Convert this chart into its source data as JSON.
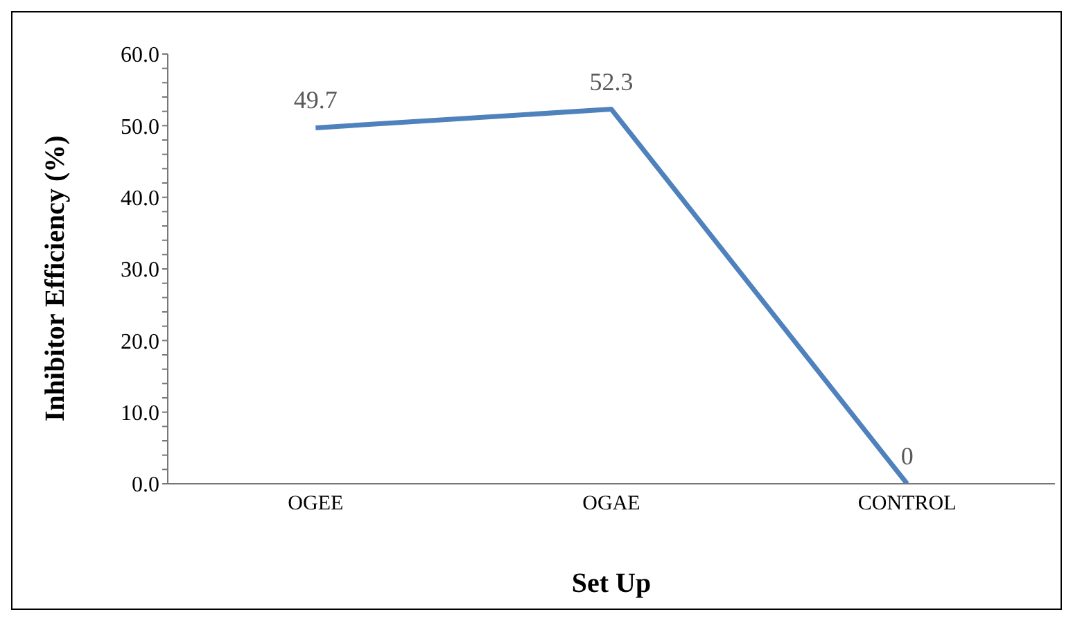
{
  "chart_data": {
    "type": "line",
    "xlabel": "Set Up",
    "ylabel": "Inhibitor Efficiency (%)",
    "categories": [
      "OGEE",
      "OGAE",
      "CONTROL"
    ],
    "series": [
      {
        "color": "#4f81bd",
        "values": [
          49.7,
          52.3,
          0
        ]
      }
    ],
    "ylim": [
      0,
      60
    ],
    "yticks": [
      {
        "value": 0,
        "label": "0.0"
      },
      {
        "value": 2,
        "label": null
      },
      {
        "value": 4,
        "label": null
      },
      {
        "value": 6,
        "label": null
      },
      {
        "value": 8,
        "label": null
      },
      {
        "value": 10,
        "label": "10.0"
      },
      {
        "value": 12,
        "label": null
      },
      {
        "value": 14,
        "label": null
      },
      {
        "value": 16,
        "label": null
      },
      {
        "value": 18,
        "label": null
      },
      {
        "value": 20,
        "label": "20.0"
      },
      {
        "value": 22,
        "label": null
      },
      {
        "value": 24,
        "label": null
      },
      {
        "value": 26,
        "label": null
      },
      {
        "value": 28,
        "label": null
      },
      {
        "value": 30,
        "label": "30.0"
      },
      {
        "value": 32,
        "label": null
      },
      {
        "value": 34,
        "label": null
      },
      {
        "value": 36,
        "label": null
      },
      {
        "value": 38,
        "label": null
      },
      {
        "value": 40,
        "label": "40.0"
      },
      {
        "value": 42,
        "label": null
      },
      {
        "value": 44,
        "label": null
      },
      {
        "value": 46,
        "label": null
      },
      {
        "value": 48,
        "label": null
      },
      {
        "value": 50,
        "label": "50.0"
      },
      {
        "value": 52,
        "label": null
      },
      {
        "value": 54,
        "label": null
      },
      {
        "value": 56,
        "label": null
      },
      {
        "value": 58,
        "label": null
      },
      {
        "value": 60,
        "label": "60.0"
      }
    ],
    "grid": false,
    "legend": false,
    "marker": "none",
    "line_style": "solid",
    "data_labels": true
  }
}
